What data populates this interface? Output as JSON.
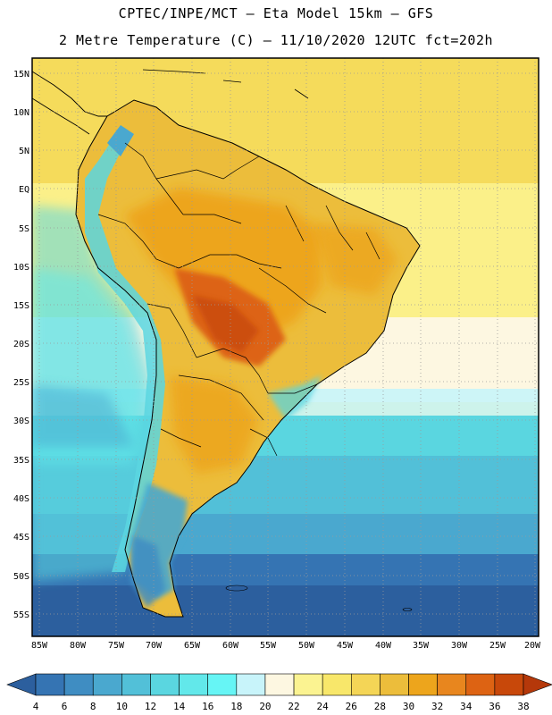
{
  "header": {
    "title_line1": "CPTEC/INPE/MCT –  Eta Model 15km – GFS",
    "title_line2": "2 Metre Temperature (C) – 11/10/2020 12UTC fct=202h"
  },
  "map": {
    "lat_labels": [
      "15N",
      "10N",
      "5N",
      "EQ",
      "5S",
      "10S",
      "15S",
      "20S",
      "25S",
      "30S",
      "35S",
      "40S",
      "45S",
      "50S",
      "55S"
    ],
    "lon_labels": [
      "85W",
      "80W",
      "75W",
      "70W",
      "65W",
      "60W",
      "55W",
      "50W",
      "45W",
      "40W",
      "35W",
      "30W",
      "25W",
      "20W"
    ],
    "grid": "dotted"
  },
  "colorbar": {
    "labels": [
      "4",
      "6",
      "8",
      "10",
      "12",
      "14",
      "16",
      "18",
      "20",
      "22",
      "24",
      "26",
      "28",
      "30",
      "32",
      "34",
      "36",
      "38"
    ],
    "colors": [
      "#2c5f9e",
      "#3574b3",
      "#3f8dc2",
      "#4aa8cf",
      "#52c0d8",
      "#5ad6e0",
      "#62e8ea",
      "#66f5f5",
      "#c8f4fa",
      "#fdf7e1",
      "#fbf391",
      "#f8e76a",
      "#f4d556",
      "#ecbd3b",
      "#eda51c",
      "#e8861e",
      "#dd6313",
      "#c8480a",
      "#b5380a"
    ]
  }
}
